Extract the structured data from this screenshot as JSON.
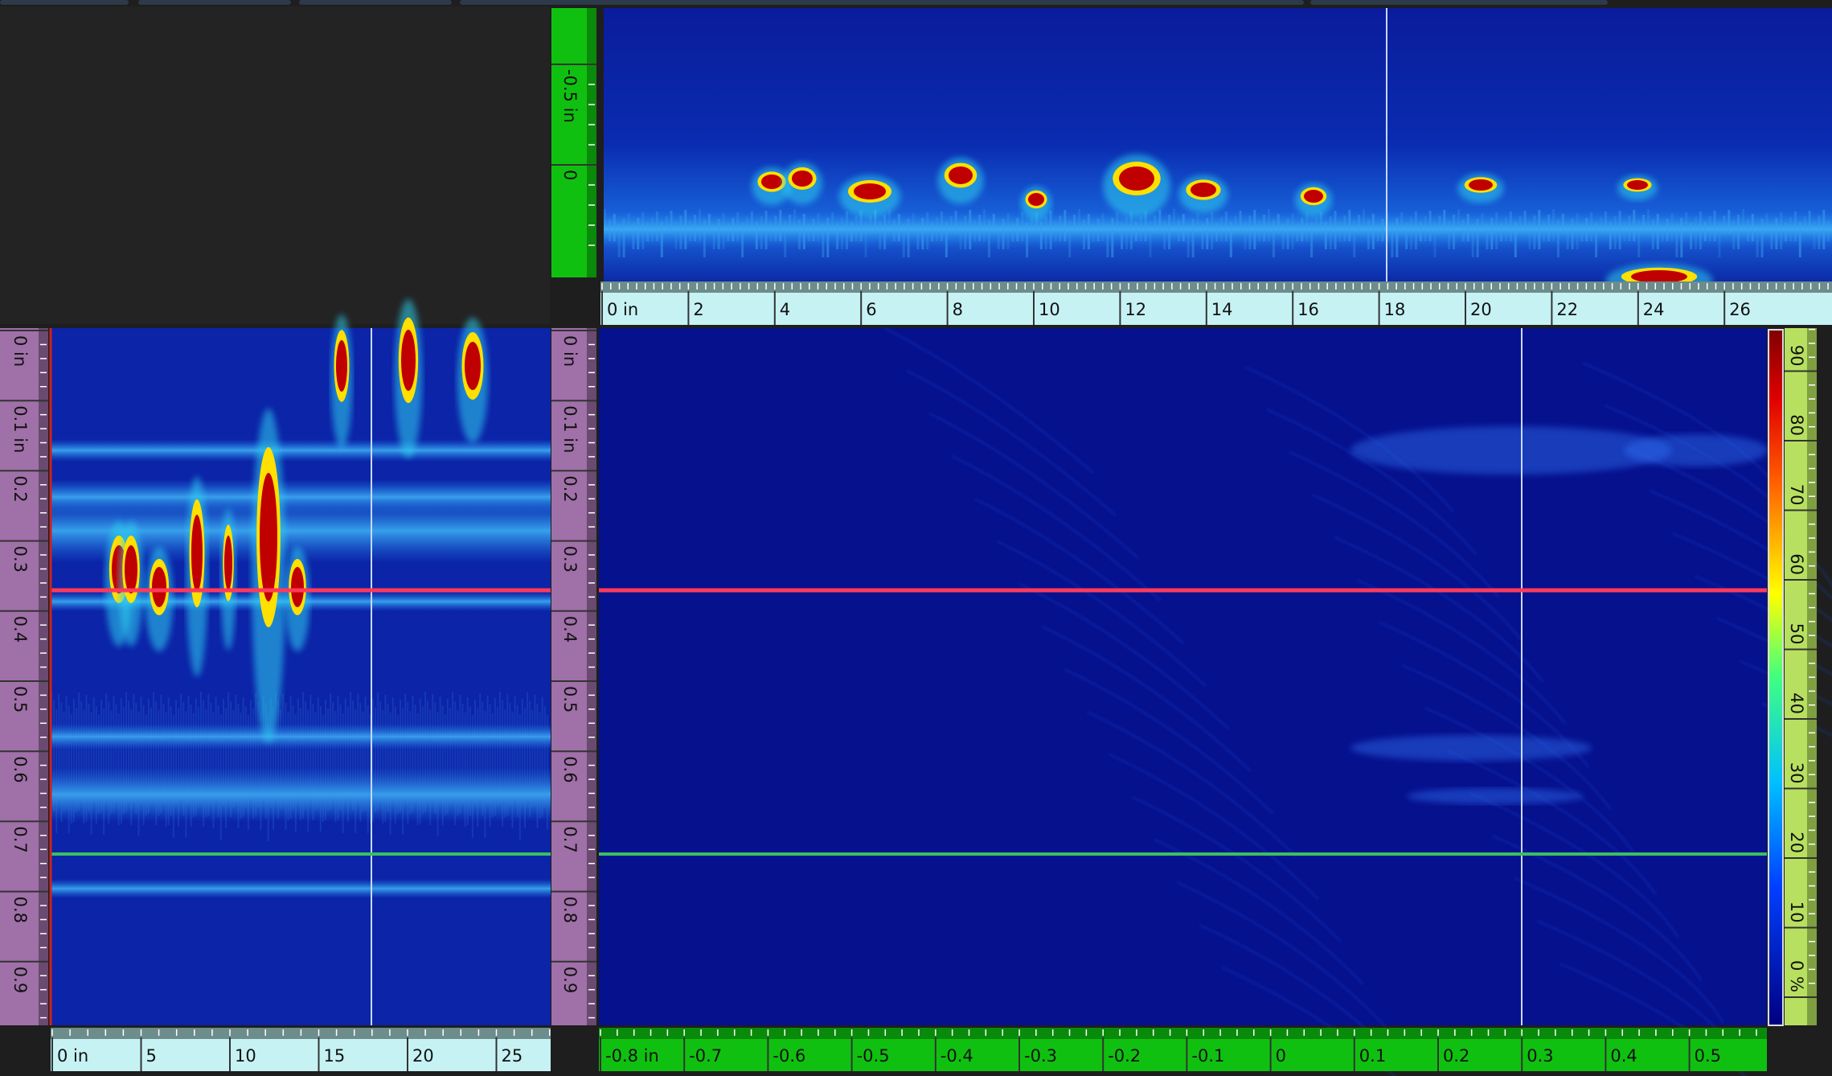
{
  "top_depth_ruler": {
    "labels": [
      "-0.5 in",
      "0"
    ]
  },
  "top_scan_ruler": {
    "labels": [
      "0 in",
      "2",
      "4",
      "6",
      "8",
      "10",
      "12",
      "14",
      "16",
      "18",
      "20",
      "22",
      "24",
      "26"
    ]
  },
  "left_depth_ruler": {
    "labels": [
      "0 in",
      "0.1 in",
      "0.2",
      "0.3",
      "0.4",
      "0.5",
      "0.6",
      "0.7",
      "0.8",
      "0.9"
    ]
  },
  "center_depth_ruler": {
    "labels": [
      "0 in",
      "0.1 in",
      "0.2",
      "0.3",
      "0.4",
      "0.5",
      "0.6",
      "0.7",
      "0.8",
      "0.9"
    ]
  },
  "left_scan_ruler": {
    "labels": [
      "0 in",
      "5",
      "10",
      "15",
      "20",
      "25"
    ]
  },
  "main_index_ruler": {
    "labels": [
      "-0.8 in",
      "-0.7",
      "-0.6",
      "-0.5",
      "-0.4",
      "-0.3",
      "-0.2",
      "-0.1",
      "0",
      "0.1",
      "0.2",
      "0.3",
      "0.4",
      "0.5"
    ]
  },
  "color_scale": {
    "labels": [
      "0 %",
      "10",
      "20",
      "30",
      "40",
      "50",
      "60",
      "70",
      "80",
      "90"
    ]
  }
}
